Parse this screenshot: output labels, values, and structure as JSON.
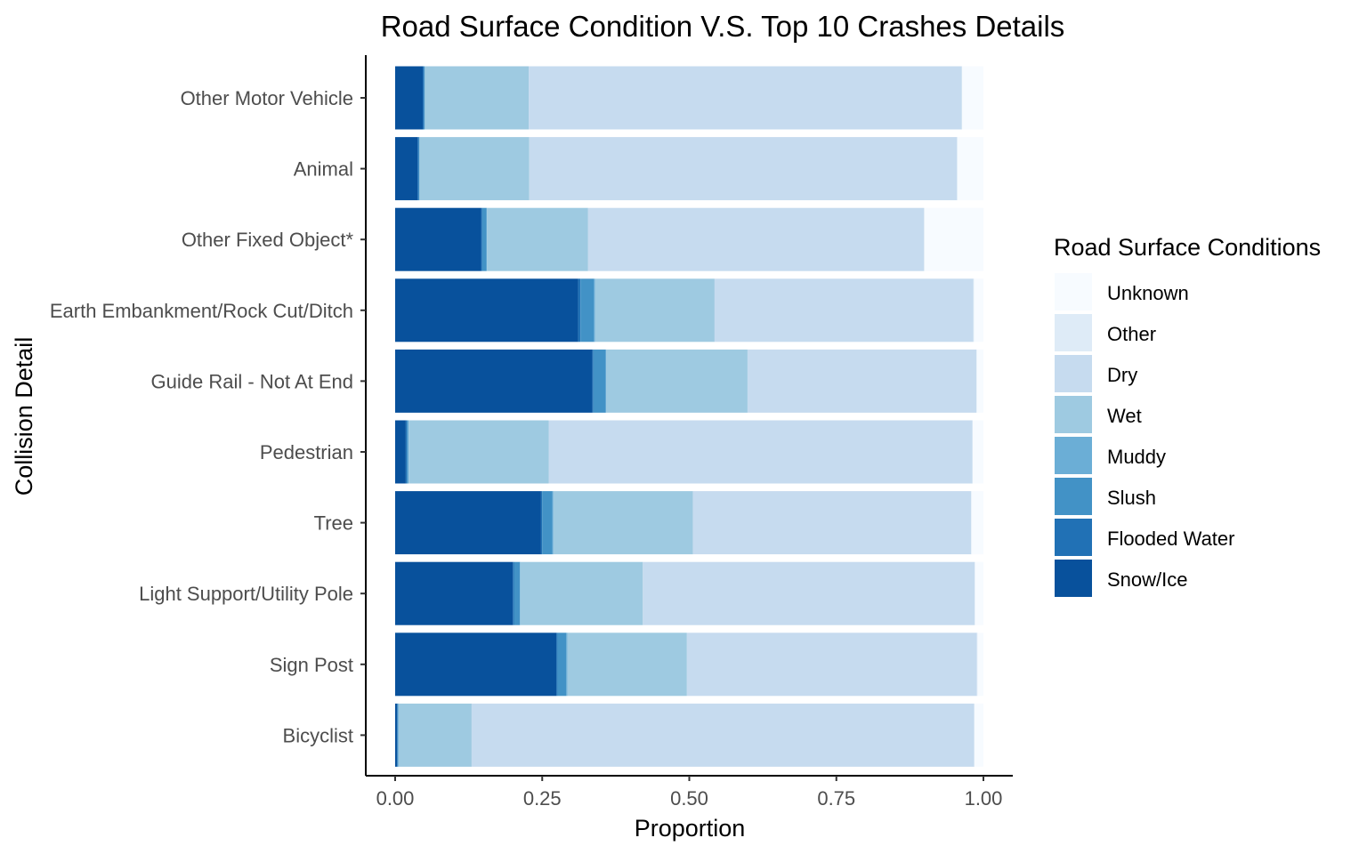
{
  "chart_data": {
    "type": "bar",
    "orientation": "horizontal",
    "stacked": "proportion",
    "title": "Road Surface Condition V.S. Top 10 Crashes Details",
    "xlabel": "Proportion",
    "ylabel": "Collision Detail",
    "xlim": [
      0,
      1
    ],
    "xticks": [
      "0.00",
      "0.25",
      "0.50",
      "0.75",
      "1.00"
    ],
    "grid": false,
    "legend_position": "right",
    "legend_title": "Road Surface Conditions",
    "categories": [
      "Other Motor Vehicle",
      "Animal",
      "Other Fixed Object*",
      "Earth Embankment/Rock Cut/Ditch",
      "Guide Rail - Not At End",
      "Pedestrian",
      "Tree",
      "Light Support/Utility Pole",
      "Sign Post",
      "Bicyclist"
    ],
    "series": [
      {
        "name": "Snow/Ice",
        "color": "#08519c",
        "values": [
          0.047,
          0.038,
          0.146,
          0.311,
          0.335,
          0.018,
          0.248,
          0.2,
          0.274,
          0.003
        ]
      },
      {
        "name": "Flooded Water",
        "color": "#2171b5",
        "values": [
          0.002,
          0.002,
          0.002,
          0.004,
          0.002,
          0.002,
          0.002,
          0.002,
          0.002,
          0.001
        ]
      },
      {
        "name": "Slush",
        "color": "#4292c6",
        "values": [
          0.001,
          0.001,
          0.007,
          0.023,
          0.021,
          0.002,
          0.017,
          0.01,
          0.015,
          0.001
        ]
      },
      {
        "name": "Muddy",
        "color": "#6baed6",
        "values": [
          0.001,
          0.001,
          0.001,
          0.002,
          0.001,
          0.001,
          0.002,
          0.001,
          0.002,
          0.001
        ]
      },
      {
        "name": "Wet",
        "color": "#9ecae1",
        "values": [
          0.176,
          0.186,
          0.172,
          0.203,
          0.24,
          0.238,
          0.237,
          0.208,
          0.203,
          0.124
        ]
      },
      {
        "name": "Dry",
        "color": "#c6dbef",
        "values": [
          0.736,
          0.727,
          0.571,
          0.44,
          0.389,
          0.72,
          0.473,
          0.564,
          0.493,
          0.854
        ]
      },
      {
        "name": "Other",
        "color": "#deebf7",
        "values": [
          0.001,
          0.001,
          0.001,
          0.001,
          0.001,
          0.001,
          0.001,
          0.001,
          0.001,
          0.001
        ]
      },
      {
        "name": "Unknown",
        "color": "#f7fbff",
        "values": [
          0.036,
          0.044,
          0.1,
          0.016,
          0.011,
          0.018,
          0.02,
          0.014,
          0.01,
          0.015
        ]
      }
    ],
    "legend_order": [
      "Unknown",
      "Other",
      "Dry",
      "Wet",
      "Muddy",
      "Slush",
      "Flooded Water",
      "Snow/Ice"
    ]
  }
}
